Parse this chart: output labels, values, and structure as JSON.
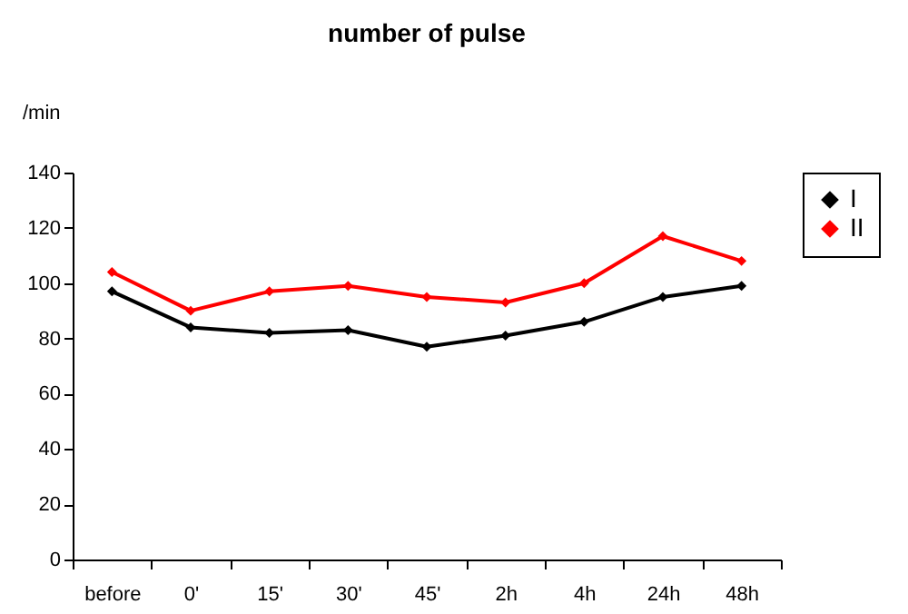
{
  "chart_data": {
    "type": "line",
    "title": "number of pulse",
    "ylabel": "/min",
    "categories": [
      "before",
      "0'",
      "15'",
      "30'",
      "45'",
      "2h",
      "4h",
      "24h",
      "48h"
    ],
    "series": [
      {
        "name": "I",
        "color": "#000000",
        "values": [
          97,
          84,
          82,
          83,
          77,
          81,
          86,
          95,
          99
        ]
      },
      {
        "name": "II",
        "color": "#ff0000",
        "values": [
          104,
          90,
          97,
          99,
          95,
          93,
          100,
          117,
          108
        ]
      }
    ],
    "ylim": [
      0,
      140
    ],
    "yticks": [
      0,
      20,
      40,
      60,
      80,
      100,
      120,
      140
    ],
    "grid": false,
    "legend": "right",
    "marker": "diamond",
    "line_style": "solid"
  }
}
